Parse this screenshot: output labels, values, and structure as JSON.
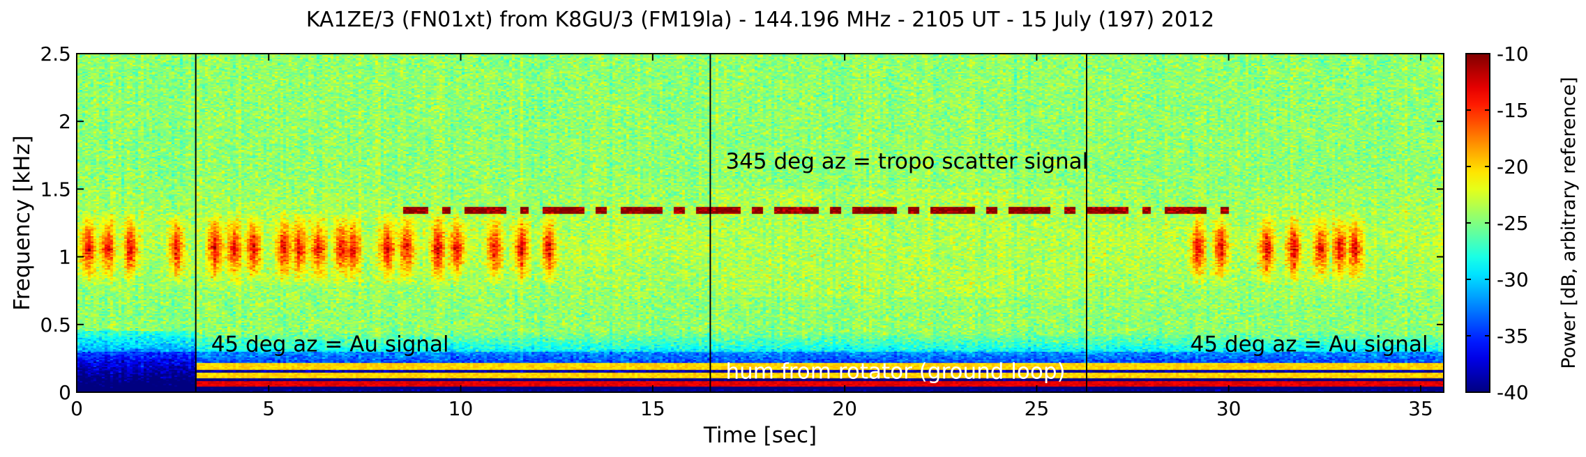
{
  "chart_data": {
    "type": "heatmap",
    "title": "KA1ZE/3 (FN01xt) from K8GU/3 (FM19la) - 144.196 MHz - 2105 UT - 15 July (197) 2012",
    "xlabel": "Time [sec]",
    "ylabel": "Frequency [kHz]",
    "xlim": [
      0,
      35.6
    ],
    "ylim": [
      0,
      2.5
    ],
    "x_ticks": [
      0,
      5,
      10,
      15,
      20,
      25,
      30,
      35
    ],
    "x_tick_labels": [
      "0",
      "5",
      "10",
      "15",
      "20",
      "25",
      "30",
      "35"
    ],
    "y_ticks": [
      0,
      0.5,
      1,
      1.5,
      2,
      2.5
    ],
    "y_tick_labels": [
      "0",
      "0.5",
      "1",
      "1.5",
      "2",
      "2.5"
    ],
    "colorbar": {
      "label": "Power [dB, arbitrary reference]",
      "range": [
        -40,
        -10
      ],
      "ticks": [
        -40,
        -35,
        -30,
        -25,
        -20,
        -15,
        -10
      ],
      "tick_labels": [
        "-40",
        "-35",
        "-30",
        "-25",
        "-20",
        "-15",
        "-10"
      ],
      "colormap": "jet"
    },
    "segment_boundaries_sec": [
      3.1,
      16.5,
      26.3
    ],
    "segments": [
      {
        "start": 0,
        "end": 3.1,
        "azimuth_deg": 45,
        "mode": "aurora"
      },
      {
        "start": 3.1,
        "end": 16.5,
        "azimuth_deg": 45,
        "mode": "aurora",
        "hum": true
      },
      {
        "start": 16.5,
        "end": 26.3,
        "azimuth_deg": 345,
        "mode": "tropo",
        "hum": true
      },
      {
        "start": 26.3,
        "end": 35.6,
        "azimuth_deg": 45,
        "mode": "aurora",
        "hum": true
      }
    ],
    "aurora_bursts_sec": [
      0.3,
      0.8,
      1.4,
      2.6,
      3.6,
      4.1,
      4.6,
      5.4,
      5.8,
      6.3,
      6.9,
      7.2,
      8.1,
      8.6,
      9.4,
      9.9,
      10.9,
      11.6,
      12.3,
      29.2,
      29.8,
      31.0,
      31.7,
      32.4,
      32.9,
      33.3
    ],
    "tropo_carrier_khz": 1.34,
    "tropo_carrier_span_sec": [
      8.5,
      30.2
    ],
    "hum_lines_khz": [
      0.06,
      0.12,
      0.19
    ],
    "annotations": [
      {
        "text": "45 deg az = Au signal",
        "x": 3.5,
        "y": 0.3
      },
      {
        "text": "345 deg az = tropo scatter signal",
        "x": 16.9,
        "y": 1.65
      },
      {
        "text": "hum from rotator (ground loop)",
        "x": 16.9,
        "y": 0.1
      },
      {
        "text": "45 deg az = Au signal",
        "x": 29.0,
        "y": 0.3
      }
    ]
  }
}
